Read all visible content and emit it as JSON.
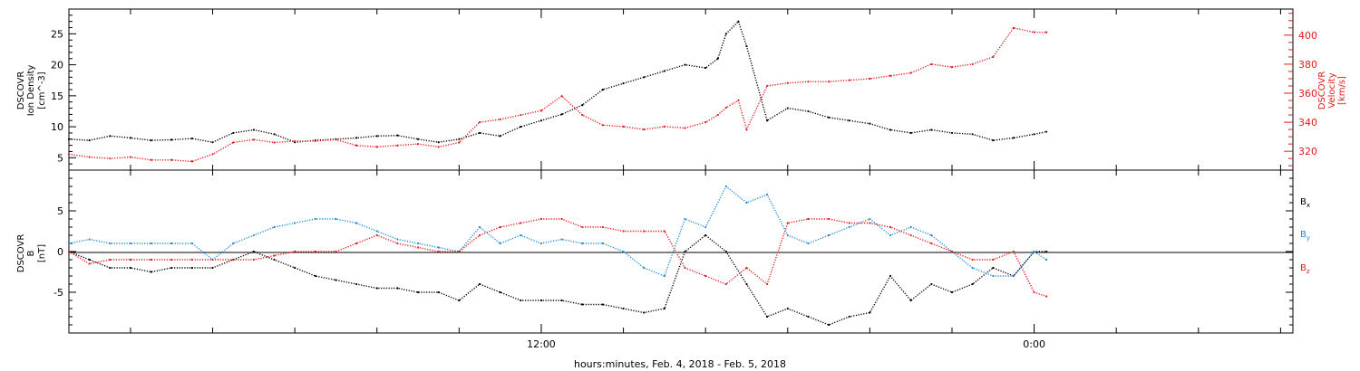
{
  "figure": {
    "xlabel": "hours:minutes, Feb.  4, 2018 - Feb.  5, 2018"
  },
  "colors": {
    "black": "#000000",
    "red": "#e31a1c",
    "blue": "#1f8ce0",
    "axis": "#000000"
  },
  "chart_data": [
    {
      "type": "scatter",
      "title": "",
      "ylabel_left": [
        "DSCOVR",
        "Ion Density",
        "[cm^-3]"
      ],
      "ylabel_right": [
        "DSCOVR",
        "Velocity",
        "[km/s]"
      ],
      "x_ticks": [
        {
          "label": "12:00",
          "hour": 12
        },
        {
          "label": "0:00",
          "hour": 24
        }
      ],
      "xlim_hours": [
        0.5,
        30.3
      ],
      "ylim_left": [
        3,
        29
      ],
      "yticks_left": [
        5,
        10,
        15,
        20,
        25
      ],
      "ylim_right": [
        307,
        418
      ],
      "yticks_right": [
        320,
        340,
        360,
        380,
        400
      ],
      "series": [
        {
          "axis": "left",
          "color": "black",
          "x": [
            0.5,
            1.0,
            1.5,
            2.0,
            2.5,
            3.0,
            3.5,
            4.0,
            4.5,
            5.0,
            5.5,
            6.0,
            6.5,
            7.0,
            7.5,
            8.0,
            8.5,
            9.0,
            9.5,
            10.0,
            10.5,
            11.0,
            11.5,
            12.0,
            12.5,
            13.0,
            13.5,
            14.0,
            14.5,
            15.0,
            15.5,
            16.0,
            16.3,
            16.5,
            16.8,
            17.0,
            17.5,
            18.0,
            18.5,
            19.0,
            19.5,
            20.0,
            20.5,
            21.0,
            21.5,
            22.0,
            22.5,
            23.0,
            23.5,
            24.0,
            24.3
          ],
          "y": [
            8,
            7.8,
            8.5,
            8.2,
            7.8,
            7.9,
            8.1,
            7.5,
            9,
            9.5,
            8.8,
            7.5,
            7.8,
            8,
            8.2,
            8.5,
            8.6,
            8,
            7.5,
            8,
            9,
            8.5,
            10,
            11,
            12,
            13.5,
            16,
            17,
            18,
            19,
            20,
            19.5,
            21,
            25,
            27,
            23,
            11,
            13,
            12.5,
            11.5,
            11,
            10.5,
            9.5,
            9,
            9.5,
            9,
            8.8,
            7.8,
            8.2,
            8.8,
            9.2
          ]
        },
        {
          "axis": "right",
          "color": "red",
          "x": [
            0.5,
            1.0,
            1.5,
            2.0,
            2.5,
            3.0,
            3.5,
            4.0,
            4.5,
            5.0,
            5.5,
            6.0,
            6.5,
            7.0,
            7.5,
            8.0,
            8.5,
            9.0,
            9.5,
            10.0,
            10.5,
            11.0,
            11.5,
            12.0,
            12.5,
            13.0,
            13.5,
            14.0,
            14.5,
            15.0,
            15.5,
            16.0,
            16.3,
            16.5,
            16.8,
            17.0,
            17.5,
            18.0,
            18.5,
            19.0,
            19.5,
            20.0,
            20.5,
            21.0,
            21.5,
            22.0,
            22.5,
            23.0,
            23.5,
            24.0,
            24.3
          ],
          "y": [
            318,
            316,
            315,
            316,
            314,
            314,
            313,
            318,
            326,
            328,
            326,
            327,
            327,
            328,
            324,
            323,
            324,
            325,
            323,
            326,
            340,
            342,
            345,
            348,
            358,
            345,
            338,
            337,
            335,
            337,
            336,
            340,
            345,
            350,
            355,
            335,
            365,
            367,
            368,
            368,
            369,
            370,
            372,
            374,
            380,
            378,
            380,
            385,
            405,
            402,
            402
          ]
        }
      ]
    },
    {
      "type": "scatter",
      "title": "",
      "ylabel_left": [
        "DSCOVR",
        "B",
        "[nT]"
      ],
      "x_ticks": [
        {
          "label": "12:00",
          "hour": 12
        },
        {
          "label": "0:00",
          "hour": 24
        }
      ],
      "xlim_hours": [
        0.5,
        30.3
      ],
      "ylim": [
        -10,
        10
      ],
      "yticks": [
        -5,
        0,
        5
      ],
      "legend": [
        {
          "name": "B",
          "sub": "x",
          "color": "black"
        },
        {
          "name": "B",
          "sub": "y",
          "color": "blue"
        },
        {
          "name": "B",
          "sub": "z",
          "color": "red"
        }
      ],
      "legend_position": "right",
      "series": [
        {
          "name": "Bx",
          "color": "black",
          "x": [
            0.5,
            1.0,
            1.5,
            2.0,
            2.5,
            3.0,
            3.5,
            4.0,
            4.5,
            5.0,
            5.5,
            6.0,
            6.5,
            7.0,
            7.5,
            8.0,
            8.5,
            9.0,
            9.5,
            10.0,
            10.5,
            11.0,
            11.5,
            12.0,
            12.5,
            13.0,
            13.5,
            14.0,
            14.5,
            15.0,
            15.5,
            16.0,
            16.5,
            17.0,
            17.5,
            18.0,
            18.5,
            19.0,
            19.5,
            20.0,
            20.5,
            21.0,
            21.5,
            22.0,
            22.5,
            23.0,
            23.5,
            24.0,
            24.3
          ],
          "y": [
            0,
            -1,
            -2,
            -2,
            -2.5,
            -2,
            -2,
            -2,
            -1,
            0,
            -1,
            -2,
            -3,
            -3.5,
            -4,
            -4.5,
            -4.5,
            -5,
            -5,
            -6,
            -4,
            -5,
            -6,
            -6,
            -6,
            -6.5,
            -6.5,
            -7,
            -7.5,
            -7,
            0,
            2,
            0,
            -4,
            -8,
            -7,
            -8,
            -9,
            -8,
            -7.5,
            -3,
            -6,
            -4,
            -5,
            -4,
            -2,
            -3,
            0,
            0
          ]
        },
        {
          "name": "By",
          "color": "blue",
          "x": [
            0.5,
            1.0,
            1.5,
            2.0,
            2.5,
            3.0,
            3.5,
            4.0,
            4.5,
            5.0,
            5.5,
            6.0,
            6.5,
            7.0,
            7.5,
            8.0,
            8.5,
            9.0,
            9.5,
            10.0,
            10.5,
            11.0,
            11.5,
            12.0,
            12.5,
            13.0,
            13.5,
            14.0,
            14.5,
            15.0,
            15.5,
            16.0,
            16.5,
            17.0,
            17.5,
            18.0,
            18.5,
            19.0,
            19.5,
            20.0,
            20.5,
            21.0,
            21.5,
            22.0,
            22.5,
            23.0,
            23.5,
            24.0,
            24.3
          ],
          "y": [
            1,
            1.5,
            1,
            1,
            1,
            1,
            1,
            -1,
            1,
            2,
            3,
            3.5,
            4,
            4,
            3.5,
            2.5,
            1.5,
            1,
            0.5,
            0,
            3,
            1,
            2,
            1,
            1.5,
            1,
            1,
            0,
            -2,
            -3,
            4,
            3,
            8,
            6,
            7,
            2,
            1,
            2,
            3,
            4,
            2,
            3,
            2,
            0,
            -2,
            -3,
            -3,
            0,
            -1
          ]
        },
        {
          "name": "Bz",
          "color": "red",
          "x": [
            0.5,
            1.0,
            1.5,
            2.0,
            2.5,
            3.0,
            3.5,
            4.0,
            4.5,
            5.0,
            5.5,
            6.0,
            6.5,
            7.0,
            7.5,
            8.0,
            8.5,
            9.0,
            9.5,
            10.0,
            10.5,
            11.0,
            11.5,
            12.0,
            12.5,
            13.0,
            13.5,
            14.0,
            14.5,
            15.0,
            15.5,
            16.0,
            16.5,
            17.0,
            17.5,
            18.0,
            18.5,
            19.0,
            19.5,
            20.0,
            20.5,
            21.0,
            21.5,
            22.0,
            22.5,
            23.0,
            23.5,
            24.0,
            24.3
          ],
          "y": [
            0,
            -1.5,
            -1,
            -1,
            -1,
            -1,
            -1,
            -1,
            -1,
            -1,
            -0.5,
            0,
            0,
            0,
            1,
            2,
            1,
            0.5,
            0,
            0,
            2,
            3,
            3.5,
            4,
            4,
            3,
            3,
            2.5,
            2.5,
            2.5,
            -2,
            -3,
            -4,
            -2,
            -4,
            3.5,
            4,
            4,
            3.5,
            3.5,
            3,
            2,
            1,
            0,
            -1,
            -1,
            0,
            -5,
            -5.5
          ]
        }
      ]
    }
  ]
}
